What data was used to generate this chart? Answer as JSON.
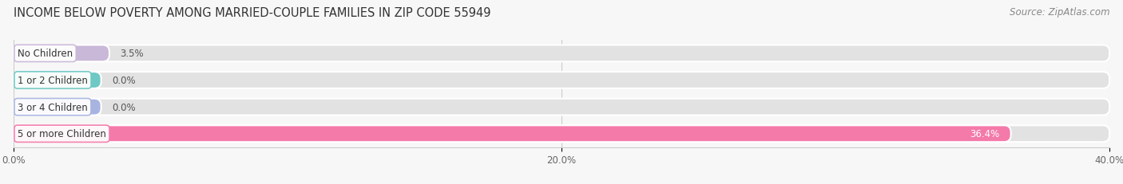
{
  "title": "INCOME BELOW POVERTY AMONG MARRIED-COUPLE FAMILIES IN ZIP CODE 55949",
  "source": "Source: ZipAtlas.com",
  "categories": [
    "No Children",
    "1 or 2 Children",
    "3 or 4 Children",
    "5 or more Children"
  ],
  "values": [
    3.5,
    0.0,
    0.0,
    36.4
  ],
  "bar_colors": [
    "#c9b8d8",
    "#6ec8c4",
    "#a8b4e0",
    "#f47aaa"
  ],
  "xlim": [
    0,
    40.0
  ],
  "xticks": [
    0.0,
    20.0,
    40.0
  ],
  "xtick_labels": [
    "0.0%",
    "20.0%",
    "40.0%"
  ],
  "background_color": "#f7f7f7",
  "bar_background_color": "#e2e2e2",
  "bar_separator_color": "#ffffff",
  "title_fontsize": 10.5,
  "source_fontsize": 8.5,
  "tick_fontsize": 8.5,
  "label_fontsize": 8.5,
  "value_fontsize": 8.5,
  "bar_height": 0.62,
  "zero_bar_width": 3.2
}
